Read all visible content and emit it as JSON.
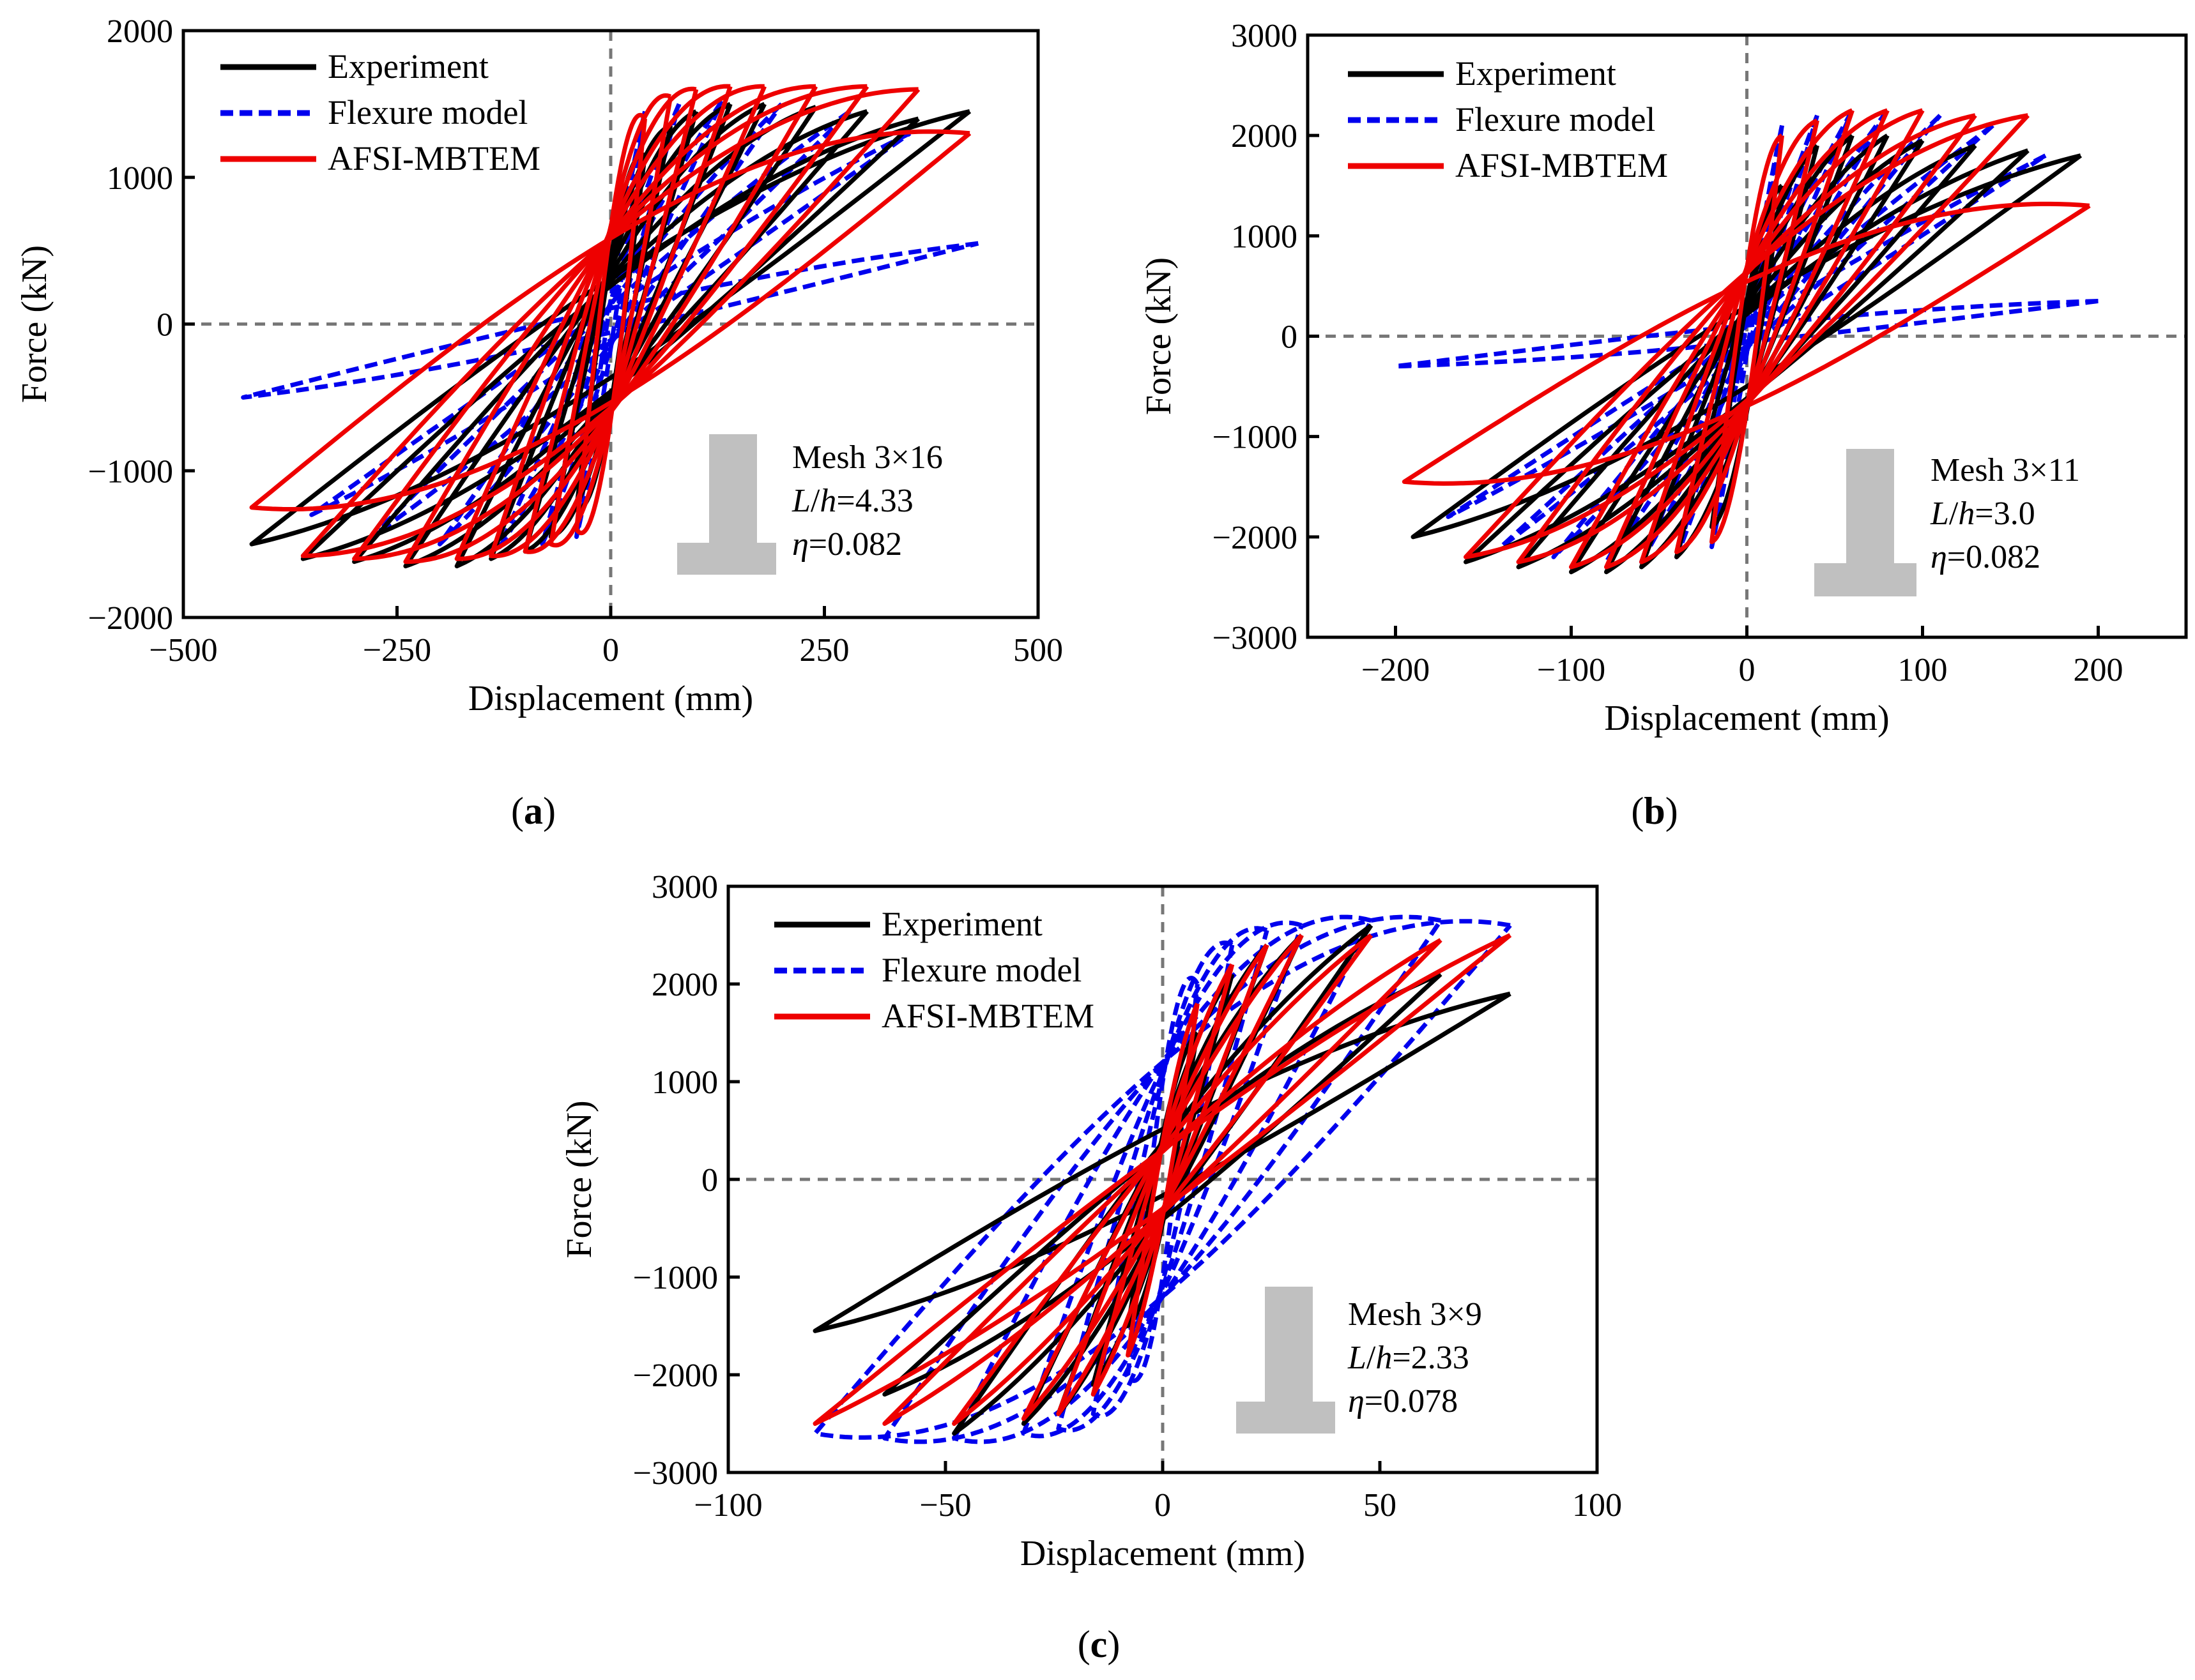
{
  "figure": {
    "panel_label_open": "(",
    "panel_label_close": ")"
  },
  "legend": [
    {
      "name": "Experiment",
      "color": "#000000",
      "dash": "solid"
    },
    {
      "name": "Flexure model",
      "color": "#0000ee",
      "dash": "dashed"
    },
    {
      "name": "AFSI-MBTEM",
      "color": "#ee0000",
      "dash": "solid"
    }
  ],
  "chart_data": [
    {
      "type": "line",
      "panel": "a",
      "xlabel": "Displacement (mm)",
      "ylabel": "Force (kN)",
      "xlim": [
        -500,
        500
      ],
      "ylim": [
        -2000,
        2000
      ],
      "xticks": [
        -500,
        -250,
        0,
        250,
        500
      ],
      "yticks": [
        -2000,
        -1000,
        0,
        1000,
        2000
      ],
      "xtick_labels": [
        "−500",
        "−250",
        "0",
        "250",
        "500"
      ],
      "ytick_labels": [
        "−2000",
        "−1000",
        "0",
        "1000",
        "2000"
      ],
      "annotation": {
        "mesh": "Mesh 3×16",
        "lh_label": "L",
        "lh_sep": "/",
        "lh_h": "h",
        "lh_value": "=4.33",
        "eta_symbol": "η",
        "eta_value": "=0.082"
      },
      "series": [
        {
          "name": "Experiment",
          "amplitudes": [
            40,
            70,
            100,
            140,
            180,
            240,
            300,
            360,
            420
          ],
          "fmax": [
            1150,
            1350,
            1450,
            1500,
            1500,
            1480,
            1450,
            1400,
            1450
          ],
          "fmin": [
            -1250,
            -1450,
            -1550,
            -1600,
            -1650,
            -1650,
            -1620,
            -1600,
            -1500
          ],
          "f0": [
            500,
            480,
            460,
            440,
            420,
            400,
            380,
            360,
            340
          ],
          "loop_scale": 1.0
        },
        {
          "name": "Flexure model",
          "amplitudes": [
            40,
            80,
            130,
            200,
            280,
            350,
            430
          ],
          "fmax": [
            1450,
            1500,
            1520,
            1500,
            1450,
            1300,
            550
          ],
          "fmin": [
            -1450,
            -1500,
            -1520,
            -1500,
            -1450,
            -1300,
            -500
          ],
          "f0": [
            300,
            280,
            260,
            240,
            220,
            200,
            150
          ],
          "loop_scale": 0.55
        },
        {
          "name": "AFSI-MBTEM",
          "amplitudes": [
            40,
            70,
            100,
            140,
            180,
            240,
            300,
            360,
            420
          ],
          "fmax": [
            1400,
            1550,
            1600,
            1620,
            1620,
            1620,
            1620,
            1600,
            1300
          ],
          "fmin": [
            -1400,
            -1500,
            -1550,
            -1580,
            -1600,
            -1620,
            -1600,
            -1580,
            -1250
          ],
          "f0": [
            650,
            640,
            630,
            620,
            610,
            600,
            590,
            580,
            560
          ],
          "loop_scale": 1.0
        }
      ]
    },
    {
      "type": "line",
      "panel": "b",
      "xlabel": "Displacement (mm)",
      "ylabel": "Force (kN)",
      "xlim": [
        -250,
        250
      ],
      "ylim": [
        -3000,
        3000
      ],
      "xticks": [
        -200,
        -100,
        0,
        100,
        200
      ],
      "yticks": [
        -3000,
        -2000,
        -1000,
        0,
        1000,
        2000,
        3000
      ],
      "xtick_labels": [
        "−200",
        "−100",
        "0",
        "100",
        "200"
      ],
      "ytick_labels": [
        "−3000",
        "−2000",
        "−1000",
        "0",
        "1000",
        "2000",
        "3000"
      ],
      "annotation": {
        "mesh": "Mesh 3×11",
        "lh_label": "L",
        "lh_sep": "/",
        "lh_h": "h",
        "lh_value": "=3.0",
        "eta_symbol": "η",
        "eta_value": "=0.082"
      },
      "series": [
        {
          "name": "Experiment",
          "amplitudes": [
            20,
            40,
            60,
            80,
            100,
            130,
            160,
            190
          ],
          "fmax": [
            1500,
            1900,
            2000,
            2000,
            1950,
            1900,
            1850,
            1800
          ],
          "fmin": [
            -1900,
            -2200,
            -2300,
            -2350,
            -2350,
            -2300,
            -2250,
            -2000
          ],
          "f0": [
            550,
            520,
            500,
            480,
            460,
            440,
            420,
            400
          ],
          "loop_scale": 1.0
        },
        {
          "name": "Flexure model",
          "amplitudes": [
            20,
            40,
            60,
            80,
            110,
            140,
            170,
            200
          ],
          "fmax": [
            2100,
            2200,
            2250,
            2250,
            2200,
            2100,
            1800,
            350
          ],
          "fmin": [
            -2100,
            -2200,
            -2250,
            -2250,
            -2200,
            -2100,
            -1800,
            -300
          ],
          "f0": [
            300,
            280,
            260,
            240,
            220,
            200,
            180,
            150
          ],
          "loop_scale": 0.55
        },
        {
          "name": "AFSI-MBTEM",
          "amplitudes": [
            20,
            40,
            60,
            80,
            100,
            130,
            160,
            195
          ],
          "fmax": [
            2000,
            2150,
            2250,
            2250,
            2250,
            2200,
            2200,
            1300
          ],
          "fmin": [
            -2050,
            -2150,
            -2250,
            -2300,
            -2300,
            -2250,
            -2200,
            -1450
          ],
          "f0": [
            700,
            690,
            680,
            670,
            660,
            650,
            640,
            620
          ],
          "loop_scale": 1.0
        }
      ]
    },
    {
      "type": "line",
      "panel": "c",
      "xlabel": "Displacement (mm)",
      "ylabel": "Force (kN)",
      "xlim": [
        -100,
        100
      ],
      "ylim": [
        -3000,
        3000
      ],
      "xticks": [
        -100,
        -50,
        0,
        50,
        100
      ],
      "yticks": [
        -3000,
        -2000,
        -1000,
        0,
        1000,
        2000,
        3000
      ],
      "xtick_labels": [
        "−100",
        "−50",
        "0",
        "50",
        "100"
      ],
      "ytick_labels": [
        "−3000",
        "−2000",
        "−1000",
        "0",
        "1000",
        "2000",
        "3000"
      ],
      "annotation": {
        "mesh": "Mesh 3×9",
        "lh_label": "L",
        "lh_sep": "/",
        "lh_h": "h",
        "lh_value": "=2.33",
        "eta_symbol": "η",
        "eta_value": "=0.078"
      },
      "series": [
        {
          "name": "Experiment",
          "amplitudes": [
            8,
            16,
            24,
            32,
            48,
            64,
            80
          ],
          "fmax": [
            1500,
            2100,
            2400,
            2500,
            2600,
            2100,
            1900
          ],
          "fmin": [
            -1500,
            -2100,
            -2400,
            -2500,
            -2600,
            -2200,
            -1550
          ],
          "f0": [
            450,
            430,
            410,
            400,
            380,
            360,
            340
          ],
          "loop_scale": 1.0
        },
        {
          "name": "Flexure model",
          "amplitudes": [
            8,
            16,
            24,
            32,
            48,
            64,
            80
          ],
          "fmax": [
            2000,
            2400,
            2550,
            2600,
            2650,
            2650,
            2600
          ],
          "fmin": [
            -2000,
            -2400,
            -2550,
            -2600,
            -2650,
            -2650,
            -2600
          ],
          "f0": [
            1000,
            1050,
            1100,
            1150,
            1200,
            1200,
            1200
          ],
          "loop_scale": 1.0
        },
        {
          "name": "AFSI-MBTEM",
          "amplitudes": [
            8,
            16,
            24,
            32,
            48,
            64,
            80
          ],
          "fmax": [
            1800,
            2200,
            2400,
            2500,
            2500,
            2450,
            2500
          ],
          "fmin": [
            -1800,
            -2200,
            -2400,
            -2450,
            -2500,
            -2500,
            -2500
          ],
          "f0": [
            380,
            360,
            340,
            330,
            320,
            310,
            300
          ],
          "loop_scale": 1.0
        }
      ]
    }
  ]
}
